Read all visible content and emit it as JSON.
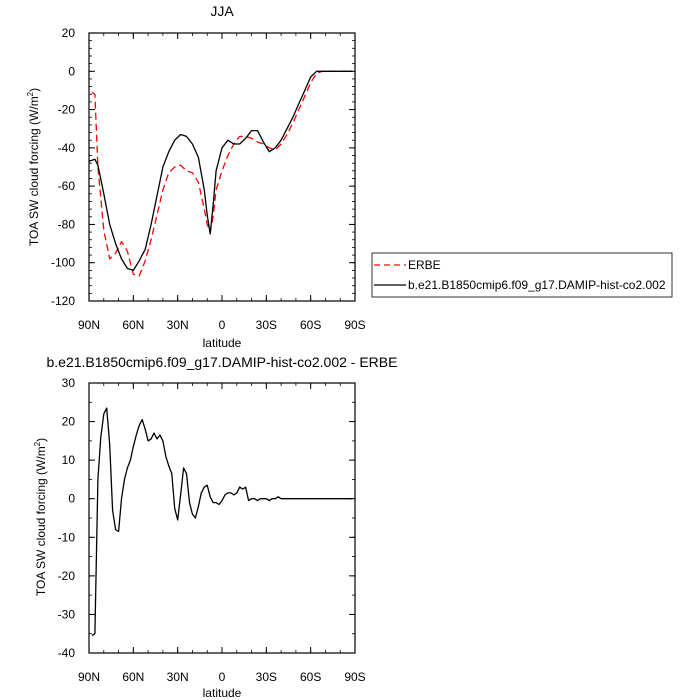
{
  "chart_data": [
    {
      "type": "line",
      "title": "JJA",
      "xlabel": "latitude",
      "ylabel": "TOA SW cloud forcing (W/m",
      "ylabel_sup": "2",
      "ylabel_close": ")",
      "xlim": [
        90,
        -90
      ],
      "ylim": [
        -120,
        20
      ],
      "x_ticks": [
        {
          "value": 90,
          "label": "90N"
        },
        {
          "value": 60,
          "label": "60N"
        },
        {
          "value": 30,
          "label": "30N"
        },
        {
          "value": 0,
          "label": "0"
        },
        {
          "value": -30,
          "label": "30S"
        },
        {
          "value": -60,
          "label": "60S"
        },
        {
          "value": -90,
          "label": "90S"
        }
      ],
      "y_ticks": [
        20,
        0,
        -20,
        -40,
        -60,
        -80,
        -100,
        -120
      ],
      "grid": false,
      "legend": "right",
      "series": [
        {
          "name": "ERBE",
          "color": "#ff0000",
          "dashed": true,
          "x": [
            88,
            86,
            84,
            80,
            76,
            72,
            68,
            64,
            60,
            56,
            52,
            48,
            44,
            40,
            36,
            32,
            28,
            24,
            20,
            16,
            12,
            10,
            8,
            6,
            4,
            0,
            -4,
            -8,
            -12,
            -16,
            -20,
            -24,
            -28,
            -32,
            -36,
            -40,
            -44,
            -48,
            -52,
            -56,
            -60,
            -64,
            -68,
            -72,
            -76,
            -80,
            -84,
            -88
          ],
          "y": [
            -11,
            -12,
            -50,
            -83,
            -98,
            -95,
            -89,
            -94,
            -106,
            -107,
            -99,
            -88,
            -75,
            -62,
            -53,
            -50,
            -49,
            -52,
            -53,
            -58,
            -72,
            -80,
            -84,
            -76,
            -62,
            -52,
            -44,
            -38,
            -34,
            -34,
            -35,
            -37,
            -38,
            -40,
            -41,
            -38,
            -33,
            -27,
            -20,
            -13,
            -6,
            -1,
            0,
            0,
            0,
            0,
            0,
            0
          ]
        },
        {
          "name": "b.e21.B1850cmip6.f09_g17.DAMIP-hist-co2.002",
          "color": "#000000",
          "dashed": false,
          "x": [
            90,
            86,
            84,
            80,
            76,
            72,
            68,
            64,
            60,
            56,
            52,
            48,
            44,
            40,
            36,
            32,
            28,
            24,
            20,
            16,
            12,
            10,
            8,
            6,
            4,
            0,
            -4,
            -8,
            -12,
            -16,
            -20,
            -24,
            -28,
            -32,
            -36,
            -40,
            -44,
            -48,
            -52,
            -56,
            -60,
            -64,
            -68,
            -72,
            -76,
            -80,
            -84,
            -88
          ],
          "y": [
            -47,
            -46,
            -49,
            -64,
            -80,
            -90,
            -98,
            -103,
            -104,
            -99,
            -93,
            -80,
            -65,
            -50,
            -42,
            -36,
            -33,
            -34,
            -38,
            -45,
            -62,
            -75,
            -85,
            -70,
            -52,
            -40,
            -36,
            -38,
            -38,
            -35,
            -31,
            -31,
            -37,
            -42,
            -40,
            -36,
            -30,
            -24,
            -17,
            -10,
            -3,
            0,
            0,
            0,
            0,
            0,
            0,
            0
          ]
        }
      ]
    },
    {
      "type": "line",
      "title": "b.e21.B1850cmip6.f09_g17.DAMIP-hist-co2.002 - ERBE",
      "xlabel": "latitude",
      "ylabel": "TOA SW cloud forcing (W/m",
      "ylabel_sup": "2",
      "ylabel_close": ")",
      "xlim": [
        90,
        -90
      ],
      "ylim": [
        -40,
        30
      ],
      "x_ticks": [
        {
          "value": 90,
          "label": "90N"
        },
        {
          "value": 60,
          "label": "60N"
        },
        {
          "value": 30,
          "label": "30N"
        },
        {
          "value": 0,
          "label": "0"
        },
        {
          "value": -30,
          "label": "30S"
        },
        {
          "value": -60,
          "label": "60S"
        },
        {
          "value": -90,
          "label": "90S"
        }
      ],
      "y_ticks": [
        30,
        20,
        10,
        0,
        -10,
        -20,
        -30,
        -40
      ],
      "grid": false,
      "series": [
        {
          "color": "#000000",
          "dashed": false,
          "x": [
            88,
            86,
            84,
            82,
            80,
            78,
            76,
            74,
            72,
            70,
            68,
            66,
            64,
            62,
            60,
            58,
            56,
            54,
            52,
            50,
            48,
            46,
            44,
            42,
            40,
            38,
            36,
            34,
            32,
            30,
            28,
            26,
            24,
            22,
            20,
            18,
            16,
            14,
            12,
            10,
            8,
            6,
            4,
            2,
            0,
            -2,
            -4,
            -6,
            -8,
            -10,
            -12,
            -14,
            -16,
            -18,
            -20,
            -22,
            -24,
            -26,
            -28,
            -30,
            -32,
            -34,
            -36,
            -38,
            -40,
            -42,
            -44,
            -46,
            -48,
            -50,
            -52,
            -54,
            -56,
            -58,
            -60,
            -62,
            -64,
            -66,
            -68,
            -70,
            -72,
            -74,
            -76,
            -78,
            -80,
            -82,
            -84,
            -86,
            -88
          ],
          "y": [
            -35.5,
            -35,
            5,
            16,
            22,
            23.5,
            14,
            -3,
            -8,
            -8.5,
            0,
            5,
            8,
            10,
            13.5,
            16.5,
            19,
            20.5,
            18,
            15,
            15.5,
            17,
            15.5,
            16.5,
            15,
            11,
            8.5,
            6.5,
            -2.5,
            -5.5,
            1,
            8,
            6.5,
            -1,
            -4,
            -5,
            -2,
            1.5,
            3,
            3.5,
            0.5,
            -1,
            -1,
            -1.5,
            -0.5,
            1,
            1.5,
            1.5,
            1,
            1.5,
            3,
            2.5,
            3,
            -0.5,
            0,
            0,
            -0.5,
            0,
            0,
            0,
            -0.5,
            0,
            0,
            0.5,
            0,
            0,
            0,
            0,
            0,
            0,
            0,
            0,
            0,
            0,
            0,
            0,
            0,
            0,
            0,
            0,
            0,
            0,
            0,
            0,
            0,
            0,
            0,
            0,
            0
          ]
        }
      ]
    }
  ]
}
